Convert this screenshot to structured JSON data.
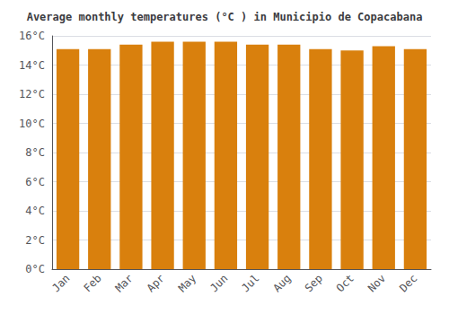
{
  "chart_data": {
    "type": "bar",
    "title": "Average monthly temperatures (°C ) in Municipio de Copacabana",
    "categories": [
      "Jan",
      "Feb",
      "Mar",
      "Apr",
      "May",
      "Jun",
      "Jul",
      "Aug",
      "Sep",
      "Oct",
      "Nov",
      "Dec"
    ],
    "values": [
      15.1,
      15.1,
      15.4,
      15.6,
      15.6,
      15.6,
      15.4,
      15.4,
      15.1,
      15.0,
      15.3,
      15.1
    ],
    "color": "#d9800d",
    "ylim": [
      0,
      16
    ],
    "yticks": [
      {
        "value": 0,
        "label": "0°C"
      },
      {
        "value": 2,
        "label": "2°C"
      },
      {
        "value": 4,
        "label": "4°C"
      },
      {
        "value": 6,
        "label": "6°C"
      },
      {
        "value": 8,
        "label": "8°C"
      },
      {
        "value": 10,
        "label": "10°C"
      },
      {
        "value": 12,
        "label": "12°C"
      },
      {
        "value": 14,
        "label": "14°C"
      },
      {
        "value": 16,
        "label": "16°C"
      }
    ],
    "grid": true
  }
}
